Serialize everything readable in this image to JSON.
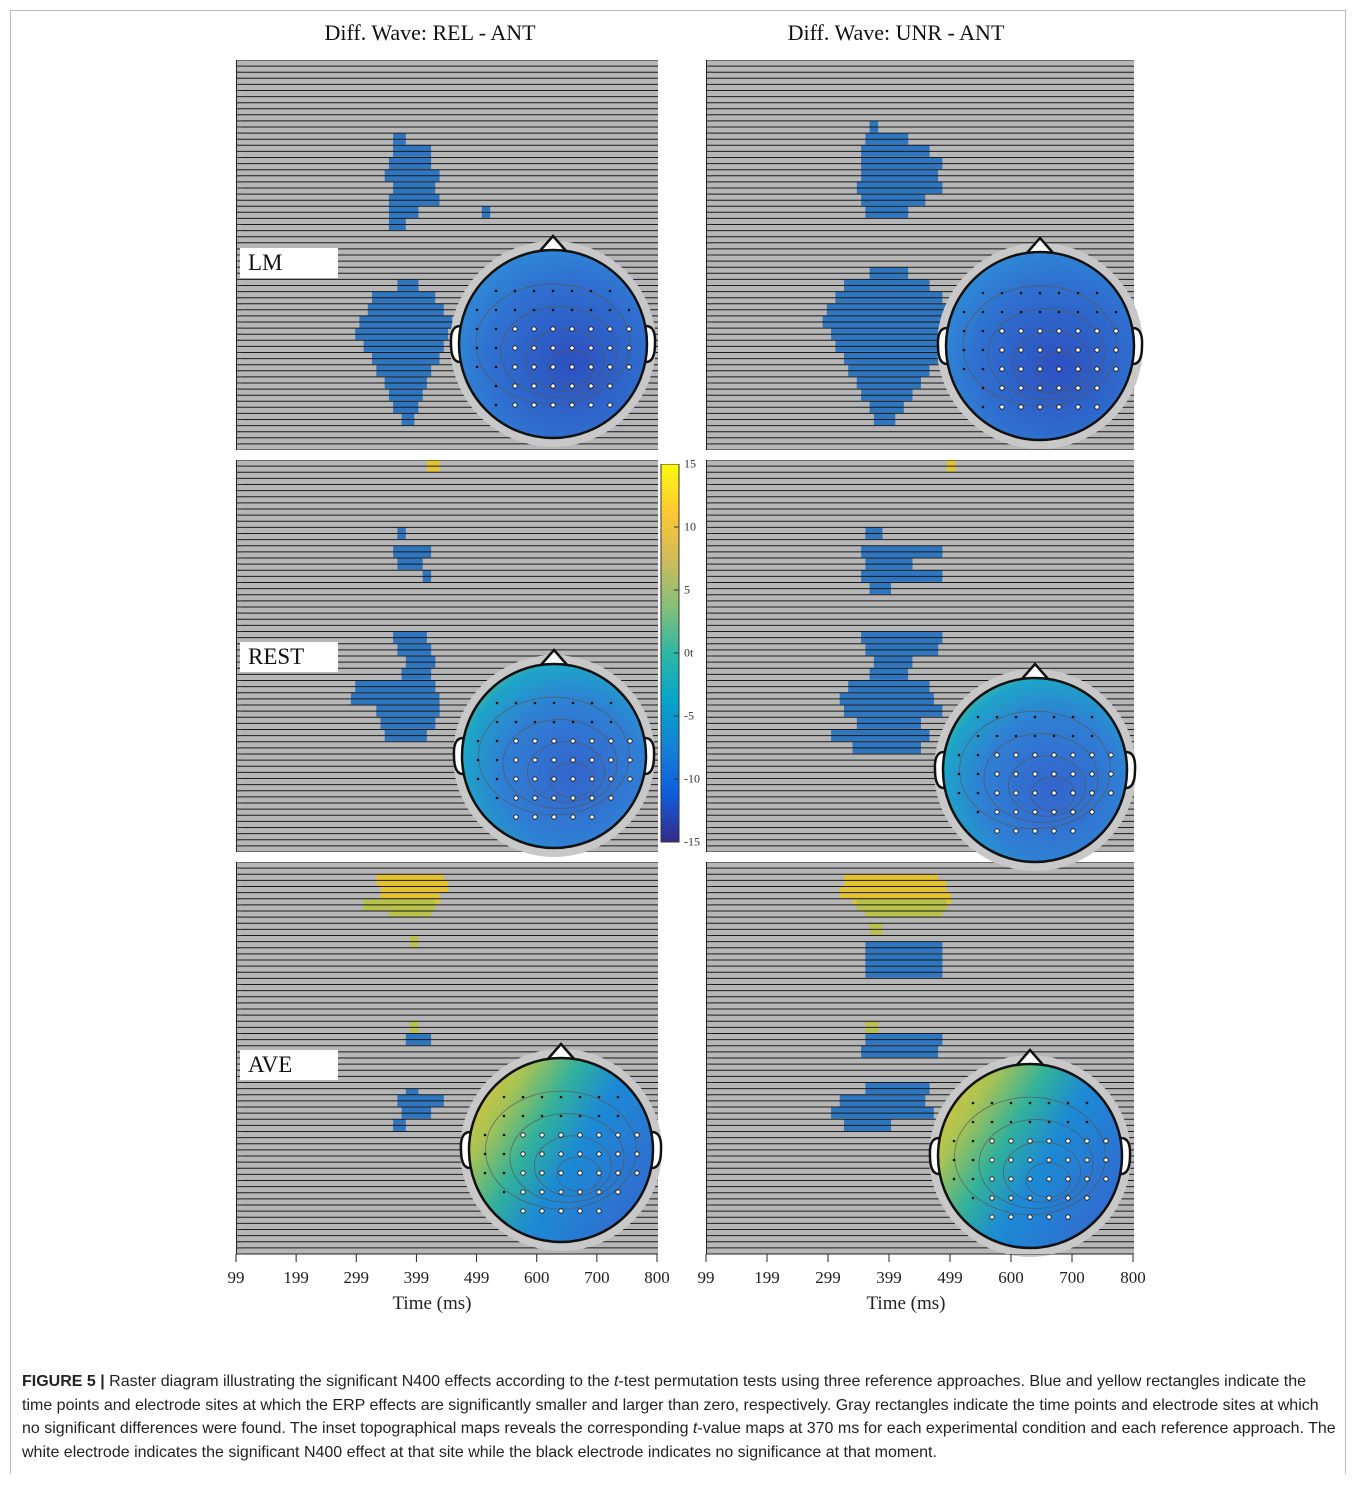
{
  "figure": {
    "columns": [
      {
        "title": "Diff. Wave: REL - ANT"
      },
      {
        "title": "Diff. Wave: UNR - ANT"
      }
    ],
    "rows": [
      {
        "label": "LM"
      },
      {
        "label": "REST"
      },
      {
        "label": "AVE"
      }
    ],
    "x_ticks": [
      "99",
      "199",
      "299",
      "399",
      "499",
      "600",
      "700",
      "800"
    ],
    "x_axis_title": "Time (ms)",
    "colorbar": {
      "ticks": [
        "15",
        "10",
        "5",
        "0t",
        "-5",
        "-10",
        "-15"
      ],
      "range": [
        -15,
        15
      ],
      "colors": [
        "#352a87",
        "#0f5cdd",
        "#1481d6",
        "#06a4ca",
        "#2eb7a4",
        "#87bf77",
        "#d1bb59",
        "#fec832",
        "#f9fb0e"
      ]
    },
    "raster_colors": {
      "background": "#b6b6b6",
      "line": "#1a1a1a",
      "significant_negative": "#2f76c0",
      "significant_positive": "#e3c332",
      "positive_mixed": "#b8c14a"
    }
  },
  "caption": {
    "label": "FIGURE 5 |",
    "parts": [
      " Raster diagram illustrating the significant N400 effects according to the ",
      "t",
      "-test permutation tests using three reference approaches. Blue and yellow rectangles indicate the time points and electrode sites at which the ERP effects are significantly smaller and larger than zero, respectively. Gray rectangles indicate the time points and electrode sites at which no significant differences were found. The inset topographical maps reveals the corresponding ",
      "t",
      "-value maps at 370 ms for each experimental condition and each reference approach. The white electrode indicates the significant N400 effect at that site while the black electrode indicates no significance at that moment."
    ]
  }
}
